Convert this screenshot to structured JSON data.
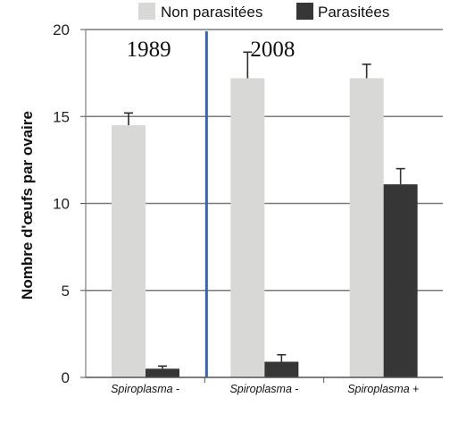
{
  "chart_data": {
    "type": "bar",
    "ylabel": "Nombre d'œufs par ovaire",
    "ylim": [
      0,
      20
    ],
    "yticks": [
      0,
      5,
      10,
      15,
      20
    ],
    "grid": true,
    "legend_position": "top",
    "categories": [
      "Spiroplasma -",
      "Spiroplasma -",
      "Spiroplasma +"
    ],
    "periods": [
      {
        "label": "1989",
        "categories": [
          0
        ]
      },
      {
        "label": "2008",
        "categories": [
          1,
          2
        ]
      }
    ],
    "series": [
      {
        "name": "Non parasitées",
        "color": "#d8d8d6",
        "values": [
          14.5,
          17.2,
          17.2
        ],
        "error_upper": [
          15.2,
          18.7,
          18.0
        ]
      },
      {
        "name": "Parasitées",
        "color": "#363636",
        "values": [
          0.5,
          0.9,
          11.1
        ],
        "error_upper": [
          0.65,
          1.3,
          12.0
        ]
      }
    ],
    "divider_color": "#3a63a8"
  }
}
